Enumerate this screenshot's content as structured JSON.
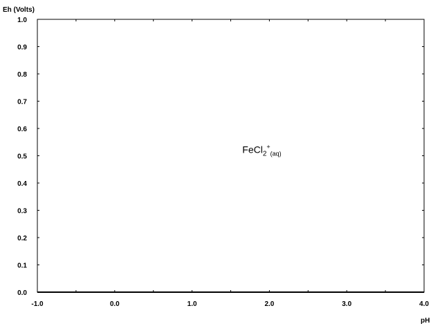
{
  "chart_data": {
    "type": "table",
    "xlabel": "pH",
    "ylabel": "Eh (Volts)",
    "xlim": [
      -1.0,
      4.0
    ],
    "ylim": [
      0.0,
      1.0
    ],
    "x_ticks": [
      -1.0,
      0.0,
      1.0,
      2.0,
      3.0,
      4.0
    ],
    "x_tick_labels": [
      "-1.0",
      "0.0",
      "1.0",
      "2.0",
      "3.0",
      "4.0"
    ],
    "y_ticks": [
      0.0,
      0.1,
      0.2,
      0.3,
      0.4,
      0.5,
      0.6,
      0.7,
      0.8,
      0.9,
      1.0
    ],
    "y_tick_labels": [
      "0.0",
      "0.1",
      "0.2",
      "0.3",
      "0.4",
      "0.5",
      "0.6",
      "0.7",
      "0.8",
      "0.9",
      "1.0"
    ],
    "grid": false,
    "annotations": [
      {
        "base": "FeCl",
        "sub1": "2",
        "sup": "+",
        "sub2": "(aq)",
        "x": 1.65,
        "y": 0.51
      }
    ],
    "colors": {
      "axis": "#000000",
      "background": "#ffffff"
    }
  }
}
